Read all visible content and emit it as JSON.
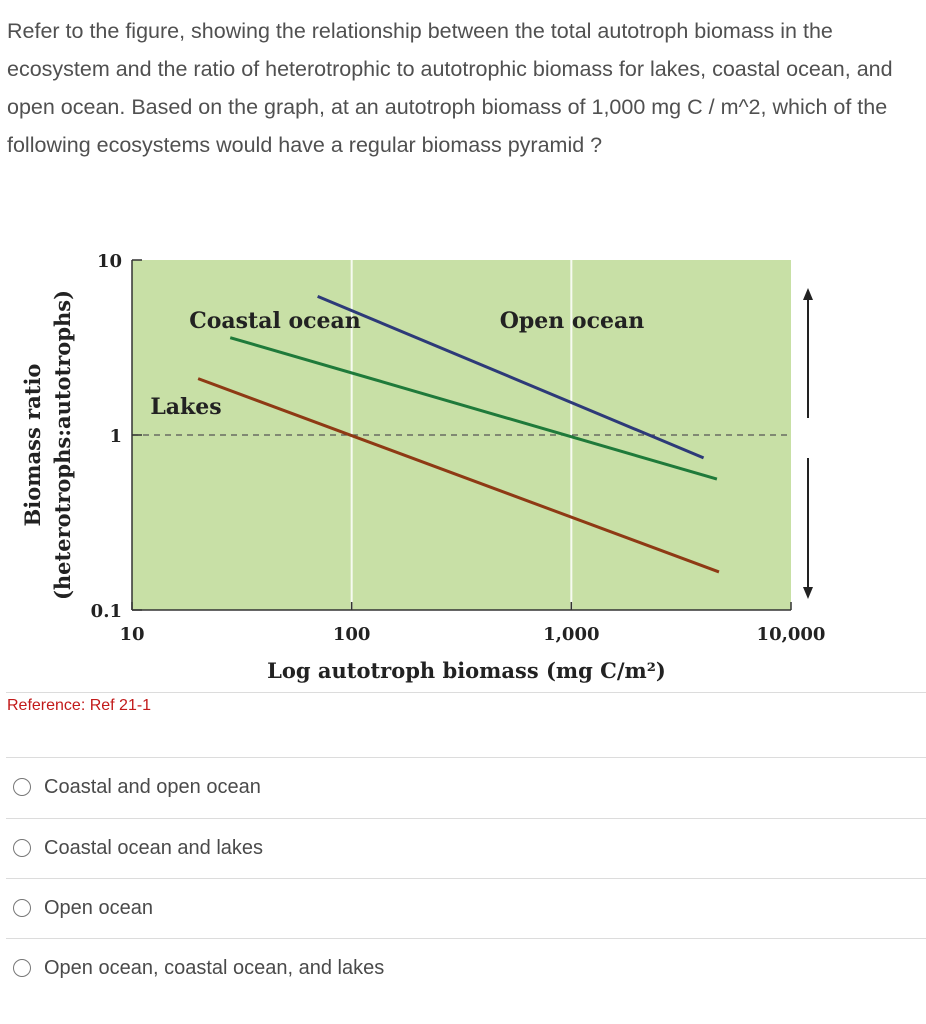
{
  "question": {
    "text": "Refer to the figure, showing the relationship between the total autotroph biomass in the ecosystem and the ratio of heterotrophic to autotrophic biomass for lakes, coastal ocean, and open ocean.  Based on the graph, at an autotroph biomass of 1,000 mg C / m^2, which of the following ecosystems would have a regular biomass pyramid ?"
  },
  "reference": "Reference: Ref 21-1",
  "options": [
    {
      "label": "Coastal and open ocean"
    },
    {
      "label": "Coastal ocean and lakes"
    },
    {
      "label": "Open ocean"
    },
    {
      "label": "Open ocean, coastal ocean, and lakes"
    }
  ],
  "chart_data": {
    "type": "line",
    "xlabel": "Log autotroph biomass (mg C/m²)",
    "ylabel_line1": "Biomass ratio",
    "ylabel_line2": "(heterotrophs:autotrophs)",
    "x_scale": "log",
    "y_scale": "log",
    "xlim": [
      10,
      10000
    ],
    "ylim": [
      0.1,
      10
    ],
    "x_ticks": [
      10,
      100,
      1000,
      10000
    ],
    "x_tick_labels": [
      "10",
      "100",
      "1,000",
      "10,000"
    ],
    "y_ticks": [
      0.1,
      1,
      10
    ],
    "y_tick_labels": [
      "0.1",
      "1",
      "10"
    ],
    "reference_line_y": 1,
    "background_color": "#c8e0a6",
    "series": [
      {
        "name": "Lakes",
        "color": "#8e3a14",
        "x": [
          20,
          4700
        ],
        "y": [
          2.1,
          0.165
        ]
      },
      {
        "name": "Coastal ocean",
        "color": "#1f7a3a",
        "x": [
          28,
          4600
        ],
        "y": [
          3.6,
          0.56
        ]
      },
      {
        "name": "Open ocean",
        "color": "#2d3a78",
        "x": [
          70,
          4000
        ],
        "y": [
          6.2,
          0.74
        ]
      }
    ]
  }
}
